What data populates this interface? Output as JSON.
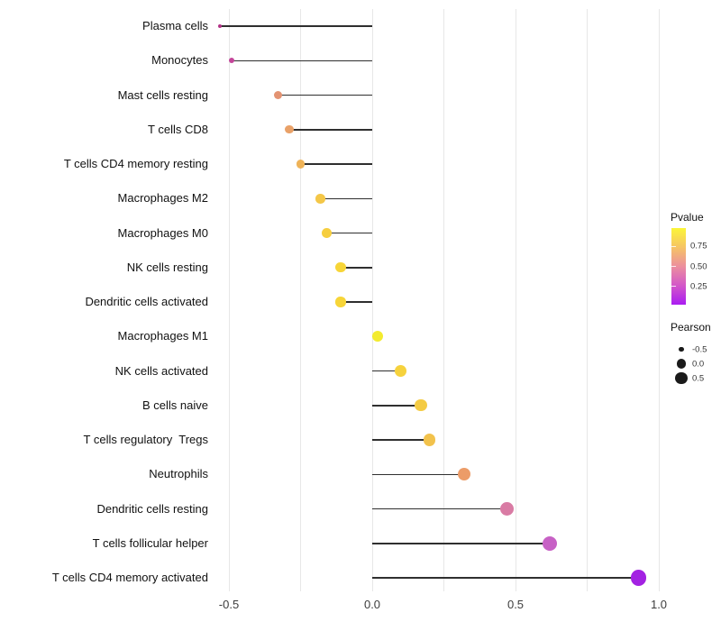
{
  "chart_data": {
    "type": "scatter",
    "variant": "lollipop",
    "title": "",
    "xlabel": "",
    "ylabel": "",
    "xlim": [
      -0.55,
      1.02
    ],
    "grid": "vertical-gridlines-only",
    "background_color": "#ffffff",
    "gridline_color": "#e7e7e7",
    "segment_color": "#2f2f2f",
    "gridline_values": [
      -0.5,
      -0.25,
      0.0,
      0.25,
      0.5,
      0.75,
      1.0
    ],
    "x_ticks": [
      {
        "label": "-0.5",
        "value": -0.5
      },
      {
        "label": "0.0",
        "value": 0.0
      },
      {
        "label": "0.5",
        "value": 0.5
      },
      {
        "label": "1.0",
        "value": 1.0
      }
    ],
    "points": [
      {
        "category": "Plasma cells",
        "pearson": -0.53,
        "color": "#B23286"
      },
      {
        "category": "Monocytes",
        "pearson": -0.49,
        "color": "#C4469A"
      },
      {
        "category": "Mast cells resting",
        "pearson": -0.33,
        "color": "#E39372"
      },
      {
        "category": "T cells CD8",
        "pearson": -0.29,
        "color": "#E9A168"
      },
      {
        "category": "T cells CD4 memory resting",
        "pearson": -0.25,
        "color": "#EFB358"
      },
      {
        "category": "Macrophages M2",
        "pearson": -0.18,
        "color": "#F4C748"
      },
      {
        "category": "Macrophages M0",
        "pearson": -0.16,
        "color": "#F6CE3F"
      },
      {
        "category": "NK cells resting",
        "pearson": -0.11,
        "color": "#F7D538"
      },
      {
        "category": "Dendritic cells activated",
        "pearson": -0.11,
        "color": "#F7D538"
      },
      {
        "category": "Macrophages M1",
        "pearson": 0.02,
        "color": "#F3EB2F"
      },
      {
        "category": "NK cells activated",
        "pearson": 0.1,
        "color": "#F6D23D"
      },
      {
        "category": "B cells naive",
        "pearson": 0.17,
        "color": "#F4CB44"
      },
      {
        "category": "T cells regulatory  Tregs",
        "pearson": 0.2,
        "color": "#F2C24C"
      },
      {
        "category": "Neutrophils",
        "pearson": 0.32,
        "color": "#EC9C68"
      },
      {
        "category": "Dendritic cells resting",
        "pearson": 0.47,
        "color": "#D97BA4"
      },
      {
        "category": "T cells follicular helper",
        "pearson": 0.62,
        "color": "#C761C5"
      },
      {
        "category": "T cells CD4 memory activated",
        "pearson": 0.93,
        "color": "#A322E2"
      }
    ],
    "legends": {
      "pvalue": {
        "title": "Pvalue",
        "tick_labels": [
          "0.75",
          "0.50",
          "0.25"
        ],
        "gradient_top_to_bottom": [
          "#FBF538",
          "#F6C465",
          "#EC8F9E",
          "#D357C8",
          "#AA1CF2"
        ]
      },
      "pearson": {
        "title": "Pearson",
        "dot_color": "#1a1a1a",
        "items": [
          {
            "label": "-0.5",
            "value": -0.5
          },
          {
            "label": "0.0",
            "value": 0.0
          },
          {
            "label": "0.5",
            "value": 0.5
          }
        ]
      }
    }
  }
}
